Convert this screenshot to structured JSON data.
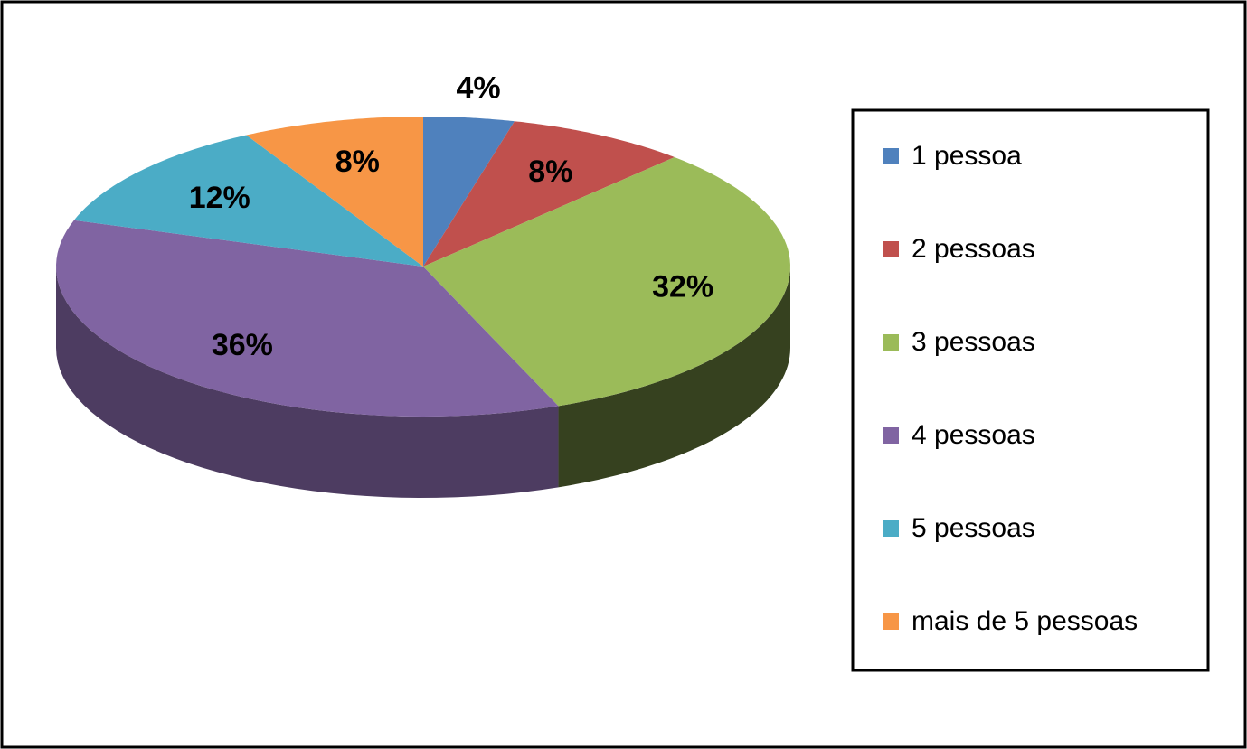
{
  "chart_data": {
    "type": "pie",
    "categories": [
      "1 pessoa",
      "2 pessoas",
      "3 pessoas",
      "4 pessoas",
      "5 pessoas",
      "mais de 5 pessoas"
    ],
    "values": [
      4,
      8,
      32,
      36,
      12,
      8
    ],
    "value_labels": [
      "4%",
      "8%",
      "32%",
      "36%",
      "12%",
      "8%"
    ],
    "colors": [
      "#4f81bd",
      "#c0504d",
      "#9bbb59",
      "#8064a2",
      "#4bacc6",
      "#f79646"
    ],
    "legend": "right"
  }
}
